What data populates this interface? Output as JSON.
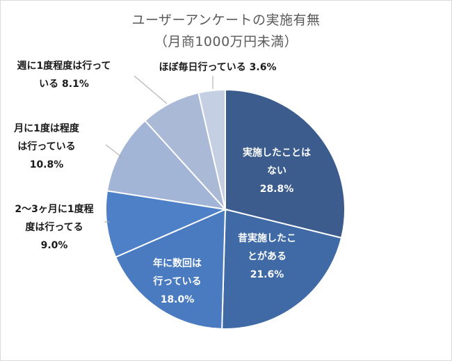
{
  "chart_data": {
    "type": "pie",
    "title": "ユーザーアンケートの実施有無",
    "subtitle": "（月商1000万円未満）",
    "slices": [
      {
        "label_lines": [
          "実施したことは",
          "ない"
        ],
        "value": 28.8,
        "value_label": "28.8%",
        "color": "#3b5c8c",
        "label_pos": "inside"
      },
      {
        "label_lines": [
          "昔実施したこ",
          "とがある"
        ],
        "value": 21.6,
        "value_label": "21.6%",
        "color": "#3f6aa6",
        "label_pos": "inside"
      },
      {
        "label_lines": [
          "年に数回は",
          "行っている"
        ],
        "value": 18.0,
        "value_label": "18.0%",
        "color": "#4a7ac0",
        "label_pos": "inside"
      },
      {
        "label_lines": [
          "2〜3ヶ月に1度程",
          "度は行ってる"
        ],
        "value": 9.0,
        "value_label": "9.0%",
        "color": "#4d80c6",
        "label_pos": "outside"
      },
      {
        "label_lines": [
          "月に1度は程度",
          "は行っている"
        ],
        "value": 10.8,
        "value_label": "10.8%",
        "color": "#a3b5d6",
        "label_pos": "outside"
      },
      {
        "label_lines": [
          "週に1度程度は行って",
          "いる"
        ],
        "value": 8.1,
        "value_label": "8.1%",
        "color": "#aab9d6",
        "label_pos": "outside"
      },
      {
        "label_lines": [
          "ほぼ毎日行っている"
        ],
        "value": 3.6,
        "value_label": "3.6%",
        "color": "#c4cfe3",
        "label_pos": "outside"
      }
    ],
    "legend": "none"
  }
}
